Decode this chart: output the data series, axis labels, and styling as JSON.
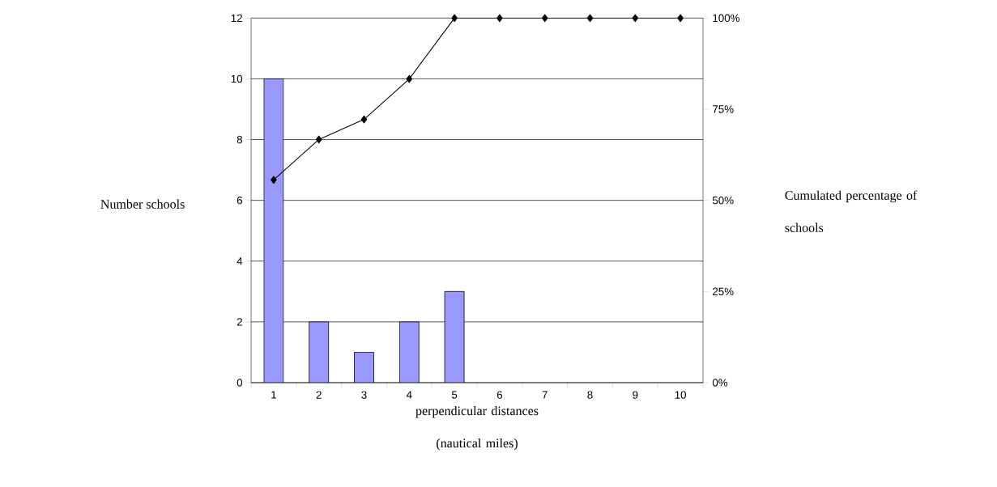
{
  "chart_data": {
    "type": "bar",
    "xlabel": "perpendicular distances (nautical miles)",
    "ylabel": "Number schools",
    "y2label": "Cumulated percentage of schools",
    "categories": [
      "1",
      "2",
      "3",
      "4",
      "5",
      "6",
      "7",
      "8",
      "9",
      "10"
    ],
    "series": [
      {
        "color": "#9999ff",
        "values": [
          10,
          2,
          1,
          2,
          3,
          0,
          0,
          0,
          0,
          0
        ]
      },
      {
        "type": "line",
        "axis": "y2",
        "color": "#000000",
        "marker": "diamond",
        "values": [
          55.6,
          66.7,
          72.2,
          83.3,
          100,
          100,
          100,
          100,
          100,
          100
        ]
      }
    ],
    "ylim": [
      0,
      12
    ],
    "yticks": [
      0,
      2,
      4,
      6,
      8,
      10,
      12
    ],
    "y2lim": [
      0,
      100
    ],
    "y2ticks": [
      {
        "value": 0,
        "label": "0%"
      },
      {
        "value": 25,
        "label": "25%"
      },
      {
        "value": 50,
        "label": "50%"
      },
      {
        "value": 75,
        "label": "75%"
      },
      {
        "value": 100,
        "label": "100%"
      }
    ],
    "grid": "y"
  }
}
